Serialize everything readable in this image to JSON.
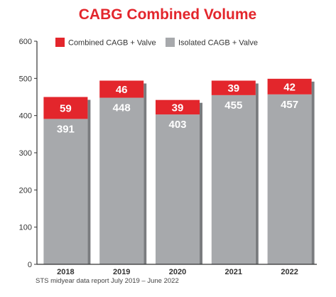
{
  "chart_data": {
    "type": "bar",
    "stacked": true,
    "title": "CABG Combined Volume",
    "categories": [
      "2018",
      "2019",
      "2020",
      "2021",
      "2022"
    ],
    "highlight_category": "2022",
    "series": [
      {
        "name": "Isolated CAGB + Valve",
        "color": "#a7a9ac",
        "values": [
          391,
          448,
          403,
          455,
          457
        ]
      },
      {
        "name": "Combined CAGB + Valve",
        "color": "#e3262c",
        "values": [
          59,
          46,
          39,
          39,
          42
        ]
      }
    ],
    "legend_order": [
      "Combined CAGB + Valve",
      "Isolated CAGB + Valve"
    ],
    "legend_position": "top-left",
    "ylim": [
      0,
      600
    ],
    "yticks": [
      0,
      100,
      200,
      300,
      400,
      500,
      600
    ],
    "grid": false,
    "xlabel": "",
    "ylabel": "",
    "source": "STS midyear data report July 2019 – June 2022"
  },
  "colors": {
    "title": "#e3262c",
    "highlight_label": "#e3262c",
    "axis": "#333333",
    "shadow": "#7a7c7f"
  }
}
